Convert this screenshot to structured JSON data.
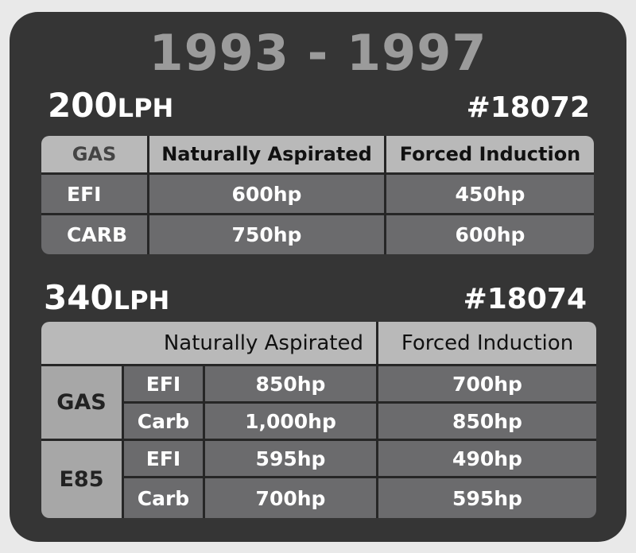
{
  "title": "1993 - 1997",
  "pump1": {
    "flow": "200",
    "unit": "LPH",
    "part": "#18072",
    "header": [
      "GAS",
      "Naturally Aspirated",
      "Forced Induction"
    ],
    "rows": [
      {
        "label": "EFI",
        "na": "600hp",
        "fi": "450hp"
      },
      {
        "label": "CARB",
        "na": "750hp",
        "fi": "600hp"
      }
    ]
  },
  "pump2": {
    "flow": "340",
    "unit": "LPH",
    "part": "#18074",
    "header": [
      "Naturally Aspirated",
      "Forced Induction"
    ],
    "fuels": [
      "GAS",
      "E85"
    ],
    "rows": [
      {
        "label": "EFI",
        "na": "850hp",
        "fi": "700hp"
      },
      {
        "label": "Carb",
        "na": "1,000hp",
        "fi": "850hp"
      },
      {
        "label": "EFI",
        "na": "595hp",
        "fi": "490hp"
      },
      {
        "label": "Carb",
        "na": "700hp",
        "fi": "595hp"
      }
    ]
  },
  "colors": {
    "card": "#353535",
    "header": "#b9b9b9",
    "cell": "#6b6b6d",
    "title": "#9b9b9b"
  }
}
